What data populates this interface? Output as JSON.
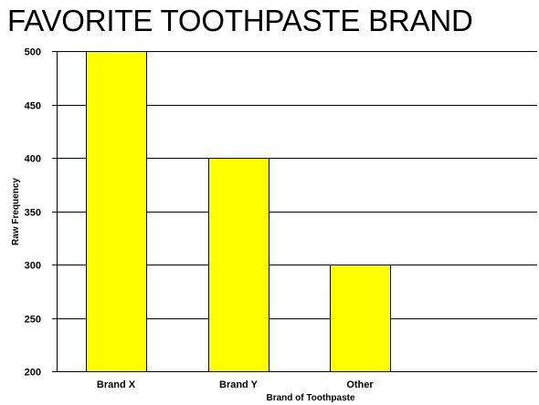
{
  "chart_data": {
    "type": "bar",
    "title": "FAVORITE TOOTHPASTE BRAND",
    "xlabel": "Brand of Toothpaste",
    "ylabel": "Raw Frequency",
    "categories": [
      "Brand X",
      "Brand Y",
      "Other"
    ],
    "values": [
      500,
      400,
      300
    ],
    "ylim": [
      200,
      500
    ],
    "yticks": [
      200,
      250,
      300,
      350,
      400,
      450,
      500
    ],
    "grid": true,
    "legend": "none"
  },
  "colors": {
    "bar_fill": "#FFFF00",
    "bar_stroke": "#000000",
    "grid": "#000000",
    "background": "#FFFFFF"
  }
}
